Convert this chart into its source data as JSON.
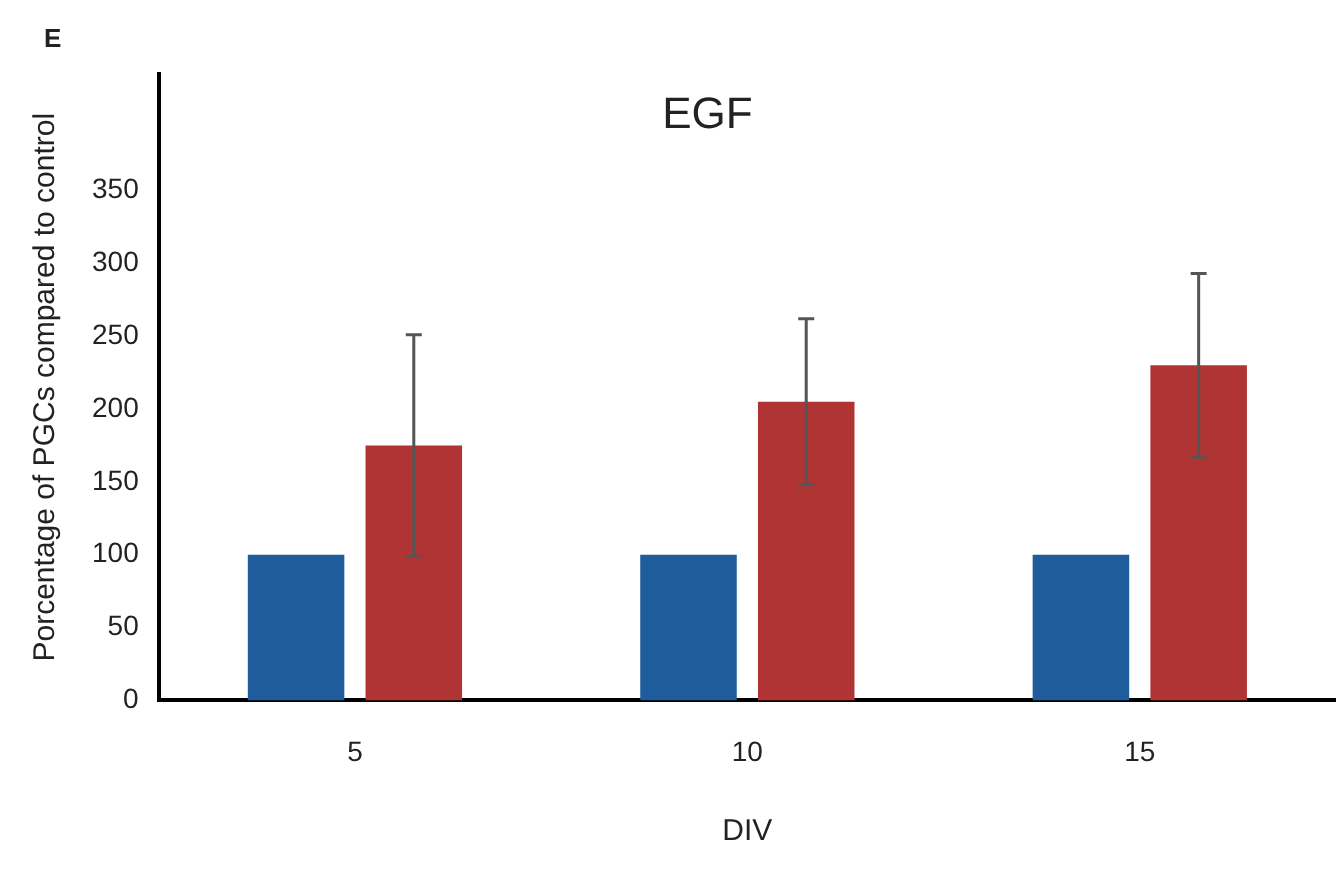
{
  "chart_data": {
    "type": "bar",
    "title": "EGF",
    "xlabel": "DIV",
    "ylabel": "Porcentage of PGCs compared to control",
    "annotations": [
      "E"
    ],
    "categories": [
      "5",
      "10",
      "15"
    ],
    "series": [
      {
        "color": "#1f5c9c",
        "values": [
          100,
          100,
          100
        ]
      },
      {
        "color": "#b03434",
        "values": [
          175,
          205,
          230
        ],
        "errors": [
          76,
          57,
          63
        ]
      }
    ],
    "ylim": [
      0,
      430
    ],
    "yticks": [
      0,
      50,
      100,
      150,
      200,
      250,
      300,
      350
    ],
    "grid": false,
    "legend": false
  }
}
